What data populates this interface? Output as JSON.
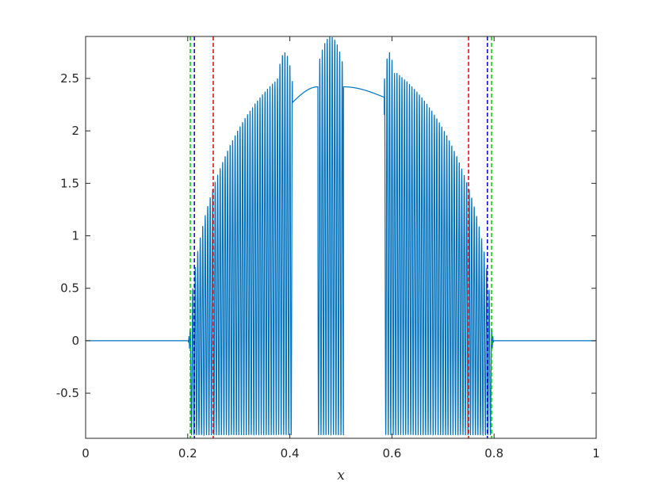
{
  "chart_data": {
    "type": "line",
    "title": "",
    "xlabel": "x",
    "ylabel": "",
    "xlim": [
      0,
      1
    ],
    "ylim": [
      -0.93,
      2.9
    ],
    "x_ticks": [
      "0",
      "0.2",
      "0.4",
      "0.6",
      "0.8",
      "1"
    ],
    "y_ticks": [
      "-0.5",
      "0",
      "0.5",
      "1",
      "1.5",
      "2",
      "2.5"
    ],
    "grid": false,
    "series": [
      {
        "type": "oscillatory-line",
        "color": "#0072BD",
        "support": [
          0.205,
          0.795
        ],
        "flat_value": 0,
        "upper_envelope_peak": 2.4,
        "lower_limit": -0.9,
        "local_bumps": [
          {
            "x": [
              0.375,
              0.405
            ],
            "upper": 2.75,
            "mid": 2.2
          },
          {
            "x": [
              0.455,
              0.505
            ],
            "upper": 2.9
          },
          {
            "x": [
              0.585,
              0.605
            ],
            "upper": 2.75,
            "mid": 2.3
          }
        ],
        "gap_intervals": [
          [
            0.405,
            0.455
          ],
          [
            0.505,
            0.585
          ]
        ],
        "gap_curve_values": [
          2.27,
          2.42,
          2.32
        ]
      }
    ],
    "vertical_lines": [
      {
        "x": 0.205,
        "color": "#00CC00",
        "style": "dashed"
      },
      {
        "x": 0.213,
        "color": "#0000CC",
        "style": "dashed"
      },
      {
        "x": 0.25,
        "color": "#E60000",
        "style": "dashed"
      },
      {
        "x": 0.75,
        "color": "#E60000",
        "style": "dashed"
      },
      {
        "x": 0.787,
        "color": "#0000CC",
        "style": "dashed"
      },
      {
        "x": 0.795,
        "color": "#00CC00",
        "style": "dashed"
      }
    ]
  }
}
